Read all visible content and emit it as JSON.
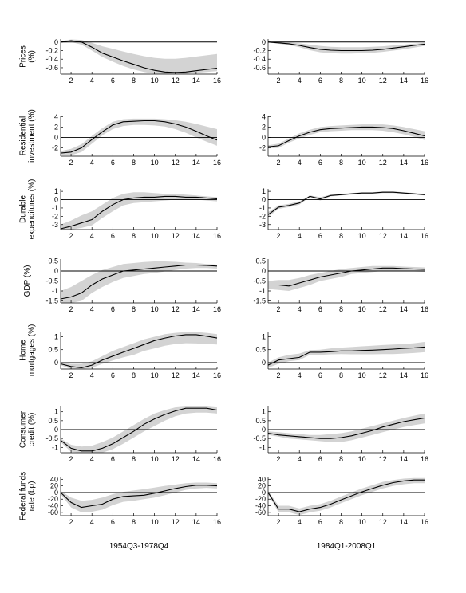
{
  "chart_data": {
    "type": "line",
    "grid": false,
    "x": [
      1,
      2,
      3,
      4,
      5,
      6,
      7,
      8,
      9,
      10,
      11,
      12,
      13,
      14,
      15,
      16
    ],
    "xticks": [
      2,
      4,
      6,
      8,
      10,
      12,
      14,
      16
    ],
    "xlim": [
      1,
      16
    ],
    "columns": [
      {
        "xlabel": "1954Q3-1978Q4"
      },
      {
        "xlabel": "1984Q1-2008Q1"
      }
    ],
    "rows": [
      {
        "ylabel": [
          "Prices",
          "(%)"
        ],
        "yticks": [
          0,
          -0.2,
          -0.4,
          -0.6
        ],
        "yticklabels": [
          "0",
          "-0.2",
          "-0.4",
          "-0.6"
        ],
        "panels": [
          {
            "ylim": [
              -0.75,
              0.07
            ],
            "response": [
              0,
              0.03,
              0.0,
              -0.12,
              -0.26,
              -0.35,
              -0.44,
              -0.52,
              -0.6,
              -0.66,
              -0.7,
              -0.71,
              -0.7,
              -0.67,
              -0.64,
              -0.61
            ],
            "band_upper": [
              0.02,
              0.06,
              0.05,
              -0.02,
              -0.1,
              -0.16,
              -0.22,
              -0.28,
              -0.33,
              -0.37,
              -0.39,
              -0.39,
              -0.37,
              -0.34,
              -0.31,
              -0.28
            ],
            "band_lower": [
              -0.02,
              0.0,
              -0.06,
              -0.2,
              -0.35,
              -0.46,
              -0.56,
              -0.64,
              -0.7,
              -0.74,
              -0.75,
              -0.75,
              -0.74,
              -0.72,
              -0.7,
              -0.68
            ]
          },
          {
            "ylim": [
              -0.75,
              0.07
            ],
            "response": [
              0,
              -0.02,
              -0.04,
              -0.08,
              -0.13,
              -0.17,
              -0.19,
              -0.2,
              -0.2,
              -0.2,
              -0.19,
              -0.17,
              -0.14,
              -0.11,
              -0.08,
              -0.05
            ],
            "band_upper": [
              0.01,
              0.0,
              -0.01,
              -0.03,
              -0.06,
              -0.09,
              -0.11,
              -0.12,
              -0.12,
              -0.12,
              -0.11,
              -0.1,
              -0.08,
              -0.06,
              -0.04,
              -0.02
            ],
            "band_lower": [
              -0.01,
              -0.04,
              -0.07,
              -0.12,
              -0.19,
              -0.24,
              -0.26,
              -0.27,
              -0.27,
              -0.26,
              -0.25,
              -0.23,
              -0.2,
              -0.17,
              -0.13,
              -0.09
            ]
          }
        ]
      },
      {
        "ylabel": [
          "Residential",
          "investment (%)"
        ],
        "yticks": [
          4,
          2,
          0,
          -2
        ],
        "yticklabels": [
          "4",
          "2",
          "0",
          "-2"
        ],
        "panels": [
          {
            "ylim": [
              -3.6,
              4.2
            ],
            "response": [
              -3.0,
              -2.8,
              -2.0,
              -0.4,
              1.1,
              2.4,
              3.0,
              3.1,
              3.2,
              3.2,
              3.0,
              2.6,
              2.0,
              1.2,
              0.3,
              -0.5
            ],
            "band_upper": [
              -2.6,
              -2.2,
              -1.3,
              0.3,
              1.8,
              3.0,
              3.5,
              3.6,
              3.6,
              3.6,
              3.5,
              3.3,
              3.0,
              2.6,
              2.1,
              1.6
            ],
            "band_lower": [
              -3.4,
              -3.4,
              -2.8,
              -1.2,
              0.4,
              1.6,
              2.2,
              2.4,
              2.4,
              2.3,
              2.1,
              1.6,
              0.9,
              0.0,
              -0.8,
              -1.6
            ]
          },
          {
            "ylim": [
              -3.6,
              4.2
            ],
            "response": [
              -1.8,
              -1.6,
              -0.6,
              0.3,
              1.0,
              1.5,
              1.7,
              1.8,
              1.9,
              2.0,
              2.0,
              1.9,
              1.7,
              1.3,
              0.8,
              0.3
            ],
            "band_upper": [
              -1.5,
              -1.2,
              -0.2,
              0.8,
              1.5,
              2.0,
              2.2,
              2.3,
              2.4,
              2.5,
              2.5,
              2.5,
              2.3,
              2.0,
              1.6,
              1.2
            ],
            "band_lower": [
              -2.1,
              -2.0,
              -1.0,
              -0.2,
              0.5,
              1.0,
              1.2,
              1.3,
              1.4,
              1.4,
              1.4,
              1.3,
              1.0,
              0.6,
              0.1,
              -0.5
            ]
          }
        ]
      },
      {
        "ylabel": [
          "Durable",
          "expenditures (%)"
        ],
        "yticks": [
          1,
          0,
          -1,
          -2,
          -3
        ],
        "yticklabels": [
          "1",
          "0",
          "-1",
          "-2",
          "-3"
        ],
        "panels": [
          {
            "ylim": [
              -3.6,
              1.3
            ],
            "response": [
              -3.5,
              -3.2,
              -2.8,
              -2.4,
              -1.4,
              -0.6,
              0.0,
              0.2,
              0.3,
              0.3,
              0.4,
              0.4,
              0.3,
              0.3,
              0.2,
              0.1
            ],
            "band_upper": [
              -3.0,
              -2.5,
              -1.9,
              -1.4,
              -0.6,
              0.2,
              0.7,
              0.9,
              0.9,
              0.8,
              0.7,
              0.7,
              0.6,
              0.5,
              0.4,
              0.3
            ],
            "band_lower": [
              -3.6,
              -3.6,
              -3.4,
              -3.1,
              -2.2,
              -1.4,
              -0.7,
              -0.4,
              -0.3,
              -0.2,
              -0.1,
              0.0,
              0.0,
              0.0,
              -0.1,
              -0.2
            ]
          },
          {
            "ylim": [
              -3.6,
              1.3
            ],
            "response": [
              -1.8,
              -0.9,
              -0.7,
              -0.4,
              0.4,
              0.1,
              0.5,
              0.6,
              0.7,
              0.8,
              0.8,
              0.9,
              0.9,
              0.8,
              0.7,
              0.6
            ],
            "band_upper": [
              -1.5,
              -0.7,
              -0.5,
              -0.2,
              0.5,
              0.3,
              0.6,
              0.7,
              0.8,
              0.9,
              0.9,
              1.0,
              1.0,
              0.9,
              0.8,
              0.7
            ],
            "band_lower": [
              -2.1,
              -1.1,
              -0.9,
              -0.6,
              0.3,
              -0.1,
              0.4,
              0.5,
              0.6,
              0.7,
              0.7,
              0.8,
              0.8,
              0.7,
              0.6,
              0.5
            ]
          }
        ]
      },
      {
        "ylabel": [
          "GDP (%)"
        ],
        "yticks": [
          0.5,
          0,
          -0.5,
          -1,
          -1.5
        ],
        "yticklabels": [
          "0.5",
          "0",
          "-0.5",
          "-1",
          "-1.5"
        ],
        "panels": [
          {
            "ylim": [
              -1.6,
              0.6
            ],
            "response": [
              -1.4,
              -1.3,
              -1.1,
              -0.7,
              -0.4,
              -0.2,
              0.0,
              0.05,
              0.1,
              0.15,
              0.2,
              0.25,
              0.3,
              0.3,
              0.28,
              0.25
            ],
            "band_upper": [
              -1.0,
              -0.8,
              -0.5,
              -0.2,
              0.05,
              0.2,
              0.35,
              0.4,
              0.45,
              0.48,
              0.48,
              0.46,
              0.42,
              0.4,
              0.35,
              0.32
            ],
            "band_lower": [
              -1.6,
              -1.6,
              -1.5,
              -1.1,
              -0.8,
              -0.55,
              -0.35,
              -0.25,
              -0.15,
              -0.1,
              -0.02,
              0.05,
              0.12,
              0.15,
              0.15,
              0.12
            ]
          },
          {
            "ylim": [
              -1.6,
              0.6
            ],
            "response": [
              -0.7,
              -0.7,
              -0.75,
              -0.6,
              -0.45,
              -0.3,
              -0.2,
              -0.1,
              0.0,
              0.05,
              0.1,
              0.15,
              0.15,
              0.12,
              0.1,
              0.08
            ],
            "band_upper": [
              -0.5,
              -0.45,
              -0.45,
              -0.35,
              -0.2,
              -0.1,
              0.0,
              0.1,
              0.15,
              0.2,
              0.25,
              0.25,
              0.25,
              0.22,
              0.2,
              0.18
            ],
            "band_lower": [
              -0.9,
              -0.95,
              -1.0,
              -0.85,
              -0.7,
              -0.5,
              -0.4,
              -0.3,
              -0.15,
              -0.1,
              -0.05,
              0.0,
              0.0,
              0.0,
              -0.02,
              -0.04
            ]
          }
        ]
      },
      {
        "ylabel": [
          "Home",
          "mortgages (%)"
        ],
        "yticks": [
          1,
          0.5,
          0
        ],
        "yticklabels": [
          "1",
          "0.5",
          "0"
        ],
        "panels": [
          {
            "ylim": [
              -0.25,
              1.2
            ],
            "response": [
              -0.05,
              -0.15,
              -0.2,
              -0.1,
              0.1,
              0.25,
              0.4,
              0.55,
              0.7,
              0.85,
              0.95,
              1.03,
              1.08,
              1.08,
              1.02,
              0.95
            ],
            "band_upper": [
              0.0,
              -0.05,
              -0.05,
              0.05,
              0.25,
              0.45,
              0.6,
              0.75,
              0.9,
              1.0,
              1.1,
              1.15,
              1.18,
              1.18,
              1.15,
              1.1
            ],
            "band_lower": [
              -0.1,
              -0.25,
              -0.25,
              -0.2,
              -0.05,
              0.08,
              0.2,
              0.3,
              0.45,
              0.55,
              0.65,
              0.72,
              0.75,
              0.74,
              0.72,
              0.7
            ]
          },
          {
            "ylim": [
              -0.25,
              1.2
            ],
            "response": [
              -0.1,
              0.1,
              0.15,
              0.2,
              0.4,
              0.4,
              0.42,
              0.45,
              0.45,
              0.47,
              0.48,
              0.5,
              0.52,
              0.55,
              0.57,
              0.6
            ],
            "band_upper": [
              0.0,
              0.2,
              0.3,
              0.35,
              0.48,
              0.5,
              0.55,
              0.58,
              0.6,
              0.63,
              0.65,
              0.68,
              0.7,
              0.72,
              0.75,
              0.8
            ],
            "band_lower": [
              -0.2,
              -0.05,
              0.05,
              0.1,
              0.3,
              0.3,
              0.32,
              0.33,
              0.32,
              0.32,
              0.32,
              0.33,
              0.33,
              0.35,
              0.37,
              0.4
            ]
          }
        ]
      },
      {
        "ylabel": [
          "Consumer",
          "credit (%)"
        ],
        "yticks": [
          1,
          0.5,
          0,
          -0.5,
          -1
        ],
        "yticklabels": [
          "1",
          "0.5",
          "0",
          "-0.5",
          "-1"
        ],
        "panels": [
          {
            "ylim": [
              -1.3,
              1.3
            ],
            "response": [
              -0.6,
              -1.05,
              -1.2,
              -1.2,
              -1.05,
              -0.8,
              -0.45,
              -0.1,
              0.3,
              0.6,
              0.85,
              1.05,
              1.2,
              1.2,
              1.2,
              1.1
            ],
            "band_upper": [
              -0.5,
              -0.85,
              -0.95,
              -0.9,
              -0.7,
              -0.45,
              -0.1,
              0.25,
              0.6,
              0.9,
              1.1,
              1.25,
              1.3,
              1.3,
              1.3,
              1.25
            ],
            "band_lower": [
              -0.7,
              -1.25,
              -1.3,
              -1.3,
              -1.3,
              -1.1,
              -0.8,
              -0.45,
              -0.1,
              0.2,
              0.5,
              0.75,
              0.9,
              0.95,
              0.95,
              0.9
            ]
          },
          {
            "ylim": [
              -1.3,
              1.3
            ],
            "response": [
              -0.2,
              -0.3,
              -0.35,
              -0.4,
              -0.45,
              -0.5,
              -0.5,
              -0.45,
              -0.35,
              -0.2,
              -0.05,
              0.15,
              0.3,
              0.45,
              0.55,
              0.65
            ],
            "band_upper": [
              -0.1,
              -0.15,
              -0.2,
              -0.25,
              -0.3,
              -0.3,
              -0.25,
              -0.2,
              -0.1,
              0.05,
              0.2,
              0.35,
              0.5,
              0.65,
              0.78,
              0.9
            ],
            "band_lower": [
              -0.3,
              -0.4,
              -0.5,
              -0.55,
              -0.6,
              -0.65,
              -0.7,
              -0.7,
              -0.6,
              -0.45,
              -0.3,
              -0.15,
              0.0,
              0.15,
              0.25,
              0.35
            ]
          }
        ]
      },
      {
        "ylabel": [
          "Federal funds",
          "rate (bp)"
        ],
        "yticks": [
          40,
          20,
          0,
          -20,
          -40,
          -60
        ],
        "yticklabels": [
          "40",
          "20",
          "0",
          "-20",
          "-40",
          "-60"
        ],
        "panels": [
          {
            "ylim": [
              -70,
              48
            ],
            "response": [
              0,
              -30,
              -45,
              -40,
              -35,
              -20,
              -12,
              -10,
              -8,
              -2,
              5,
              12,
              18,
              22,
              22,
              20
            ],
            "band_upper": [
              5,
              -15,
              -25,
              -22,
              -15,
              -5,
              2,
              6,
              10,
              15,
              20,
              24,
              28,
              30,
              30,
              28
            ],
            "band_lower": [
              -5,
              -45,
              -60,
              -58,
              -52,
              -38,
              -28,
              -25,
              -20,
              -15,
              -8,
              0,
              8,
              12,
              14,
              12
            ]
          },
          {
            "ylim": [
              -70,
              48
            ],
            "response": [
              0,
              -50,
              -50,
              -58,
              -50,
              -45,
              -35,
              -22,
              -10,
              2,
              12,
              22,
              30,
              35,
              38,
              38
            ],
            "band_upper": [
              5,
              -40,
              -40,
              -48,
              -40,
              -35,
              -25,
              -12,
              0,
              12,
              22,
              32,
              38,
              42,
              44,
              44
            ],
            "band_lower": [
              -5,
              -60,
              -60,
              -68,
              -60,
              -55,
              -45,
              -32,
              -20,
              -8,
              2,
              12,
              20,
              25,
              28,
              28
            ]
          }
        ]
      }
    ]
  }
}
